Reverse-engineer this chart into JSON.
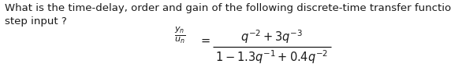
{
  "line1": "What is the time-delay, order and gain of the following discrete-time transfer function for a",
  "line2": "step input ?",
  "bg_color": "#ffffff",
  "text_color": "#1a1a1a",
  "fontsize_body": 9.5,
  "fontsize_math": 10.5,
  "fig_width": 5.72,
  "fig_height": 0.82,
  "dpi": 100
}
